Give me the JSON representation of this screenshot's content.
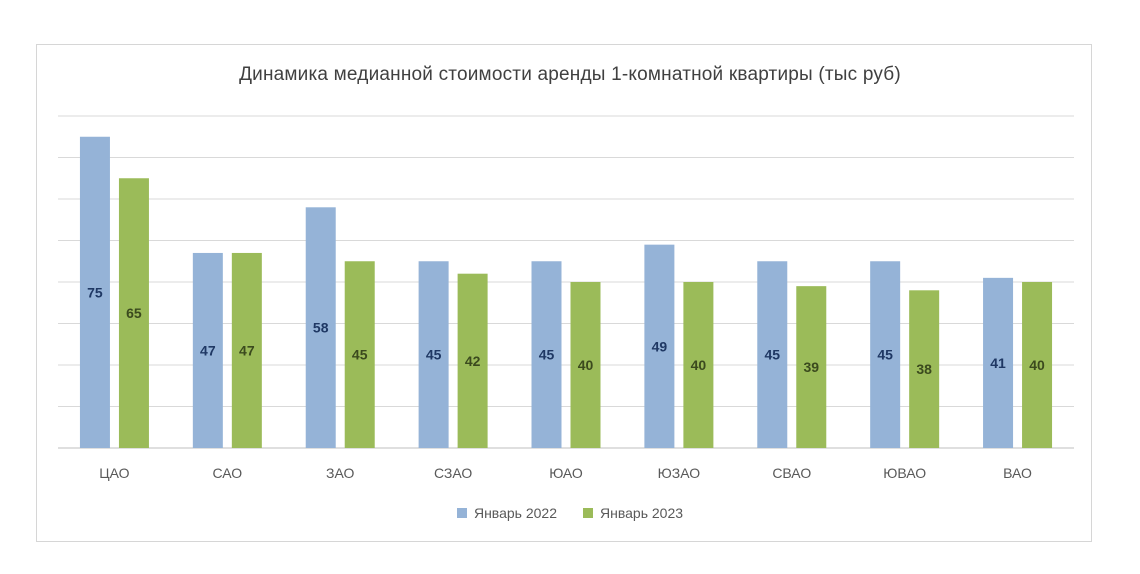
{
  "chart_data": {
    "type": "bar",
    "title": "Динамика медианной стоимости аренды 1-комнатной квартиры (тыс руб)",
    "categories": [
      "ЦАО",
      "САО",
      "ЗАО",
      "СЗАО",
      "ЮАО",
      "ЮЗАО",
      "СВАО",
      "ЮВАО",
      "ВАО"
    ],
    "series": [
      {
        "name": "Январь 2022",
        "color": "#95b3d7",
        "label_color": "#1f3864",
        "values": [
          75,
          47,
          58,
          45,
          45,
          49,
          45,
          45,
          41
        ]
      },
      {
        "name": "Январь 2023",
        "color": "#9bbb59",
        "label_color": "#3b4a1e",
        "values": [
          65,
          47,
          45,
          42,
          40,
          40,
          39,
          38,
          40
        ]
      }
    ],
    "ylim": [
      0,
      80
    ],
    "grid": true,
    "legend_position": "bottom",
    "xlabel": "",
    "ylabel": ""
  }
}
